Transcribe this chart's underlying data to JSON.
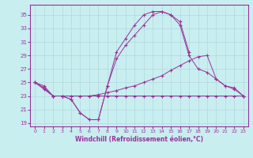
{
  "xlabel": "Windchill (Refroidissement éolien,°C)",
  "bg_color": "#c8eef0",
  "grid_color": "#b0d8dc",
  "line_color": "#993399",
  "xlim": [
    -0.5,
    23.5
  ],
  "ylim": [
    18.5,
    36.5
  ],
  "yticks": [
    19,
    21,
    23,
    25,
    27,
    29,
    31,
    33,
    35
  ],
  "xticks": [
    0,
    1,
    2,
    3,
    4,
    5,
    6,
    7,
    8,
    9,
    10,
    11,
    12,
    13,
    14,
    15,
    16,
    17,
    18,
    19,
    20,
    21,
    22,
    23
  ],
  "series1_x": [
    0,
    1,
    2,
    3,
    4,
    5,
    6,
    7,
    8,
    9,
    10,
    11,
    12,
    13,
    14,
    15,
    16,
    17
  ],
  "series1_y": [
    25.0,
    24.0,
    23.0,
    23.0,
    22.5,
    20.5,
    19.5,
    19.5,
    24.5,
    29.5,
    31.5,
    33.5,
    35.0,
    35.5,
    35.5,
    35.0,
    34.0,
    29.5
  ],
  "series2_x": [
    0,
    1,
    2,
    3,
    4,
    5,
    6,
    7,
    8,
    9,
    10,
    11,
    12,
    13,
    14,
    15,
    16,
    17,
    18,
    19,
    20,
    21,
    22,
    23
  ],
  "series2_y": [
    25.0,
    24.2,
    23.0,
    23.0,
    23.0,
    23.0,
    23.0,
    23.0,
    23.0,
    23.0,
    23.0,
    23.0,
    23.0,
    23.0,
    23.0,
    23.0,
    23.0,
    23.0,
    23.0,
    23.0,
    23.0,
    23.0,
    23.0,
    23.0
  ],
  "series3_x": [
    0,
    1,
    2,
    3,
    4,
    5,
    6,
    7,
    8,
    9,
    10,
    11,
    12,
    13,
    14,
    15,
    16,
    17,
    18,
    19,
    20,
    21,
    22,
    23
  ],
  "series3_y": [
    25.0,
    24.2,
    23.0,
    23.0,
    23.0,
    23.0,
    23.0,
    23.2,
    23.5,
    23.8,
    24.2,
    24.5,
    25.0,
    25.5,
    26.0,
    26.8,
    27.5,
    28.2,
    28.8,
    29.0,
    25.5,
    24.5,
    24.0,
    23.0
  ],
  "series4_x": [
    0,
    1,
    2,
    3,
    4,
    5,
    6,
    7,
    8,
    9,
    10,
    11,
    12,
    13,
    14,
    15,
    16,
    17,
    18,
    19,
    20,
    21,
    22,
    23
  ],
  "series4_y": [
    25.0,
    24.5,
    23.0,
    23.0,
    22.5,
    20.5,
    19.5,
    19.5,
    24.5,
    28.5,
    30.5,
    32.0,
    33.5,
    35.0,
    35.5,
    35.0,
    33.5,
    29.0,
    27.0,
    26.5,
    25.5,
    24.5,
    24.2,
    23.0
  ]
}
